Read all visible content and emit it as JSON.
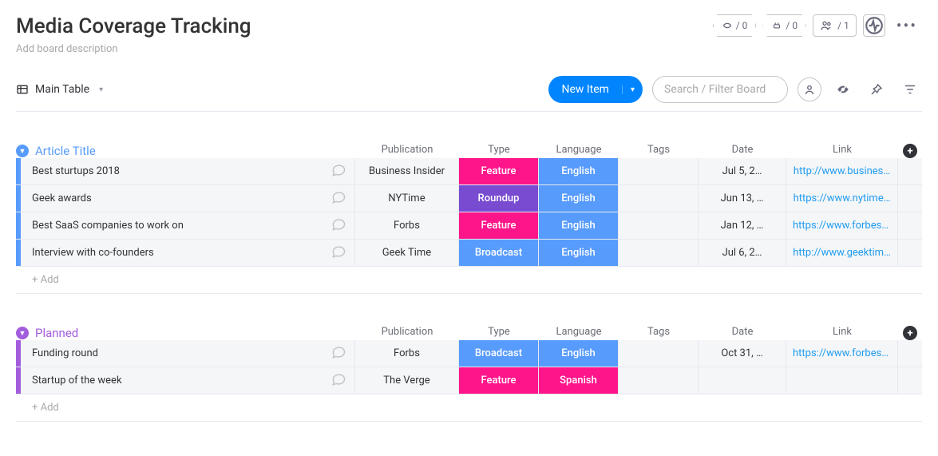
{
  "header": {
    "title": "Media Coverage Tracking",
    "description_placeholder": "Add board description",
    "automation_count": "/ 0",
    "integration_count": "/ 0",
    "members_count": "/ 1"
  },
  "toolbar": {
    "view_label": "Main Table",
    "new_item_label": "New Item",
    "search_placeholder": "Search / Filter Board"
  },
  "columns": {
    "publication": "Publication",
    "type": "Type",
    "language": "Language",
    "tags": "Tags",
    "date": "Date",
    "link": "Link"
  },
  "colors": {
    "group1_accent": "#579bfc",
    "group2_accent": "#a25ddc",
    "type_feature": "#ff158a",
    "type_roundup": "#784bd1",
    "type_broadcast": "#579bfc",
    "lang_english": "#579bfc",
    "lang_spanish": "#ff158a"
  },
  "labels": {
    "add_row": "+ Add"
  },
  "groups": [
    {
      "title": "Article Title",
      "accent_key": "group1_accent",
      "rows": [
        {
          "title": "Best sturtups 2018",
          "publication": "Business Insider",
          "type": "Feature",
          "type_color_key": "type_feature",
          "language": "English",
          "lang_color_key": "lang_english",
          "tags": "",
          "date": "Jul 5, 2…",
          "link": "http://www.busines…"
        },
        {
          "title": "Geek awards",
          "publication": "NYTime",
          "type": "Roundup",
          "type_color_key": "type_roundup",
          "language": "English",
          "lang_color_key": "lang_english",
          "tags": "",
          "date": "Jun 13, …",
          "link": "https://www.nytime…"
        },
        {
          "title": "Best SaaS companies to work on",
          "publication": "Forbs",
          "type": "Feature",
          "type_color_key": "type_feature",
          "language": "English",
          "lang_color_key": "lang_english",
          "tags": "",
          "date": "Jan 12, …",
          "link": "https://www.forbes.…"
        },
        {
          "title": "Interview with co-founders",
          "publication": "Geek Time",
          "type": "Broadcast",
          "type_color_key": "type_broadcast",
          "language": "English",
          "lang_color_key": "lang_english",
          "tags": "",
          "date": "Jul 6, 2…",
          "link": "http://www.geektim…"
        }
      ]
    },
    {
      "title": "Planned",
      "accent_key": "group2_accent",
      "rows": [
        {
          "title": "Funding round",
          "publication": "Forbs",
          "type": "Broadcast",
          "type_color_key": "type_broadcast",
          "language": "English",
          "lang_color_key": "lang_english",
          "tags": "",
          "date": "Oct 31, …",
          "link": "https://www.forbes.…"
        },
        {
          "title": "Startup of the week",
          "publication": "The Verge",
          "type": "Feature",
          "type_color_key": "type_feature",
          "language": "Spanish",
          "lang_color_key": "lang_spanish",
          "tags": "",
          "date": "",
          "link": ""
        }
      ]
    }
  ]
}
